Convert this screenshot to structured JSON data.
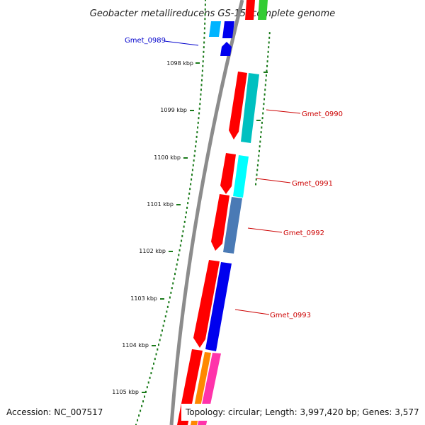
{
  "title": "Geobacter metallireducens GS-15, complete genome",
  "accession_label": "Accession: NC_007517",
  "topology_label": "Topology: circular; Length: 3,997,420 bp; Genes: 3,577",
  "ticks": [
    {
      "label": "1098 kbp"
    },
    {
      "label": "1099 kbp"
    },
    {
      "label": "1100 kbp"
    },
    {
      "label": "1101 kbp"
    },
    {
      "label": "1102 kbp"
    },
    {
      "label": "1103 kbp"
    },
    {
      "label": "1104 kbp"
    },
    {
      "label": "1105 kbp"
    }
  ],
  "gene_labels": [
    {
      "name": "Gmet_0989",
      "color": "#0000cc"
    },
    {
      "name": "Gmet_0990",
      "color": "#cc0000"
    },
    {
      "name": "Gmet_0991",
      "color": "#cc0000"
    },
    {
      "name": "Gmet_0992",
      "color": "#cc0000"
    },
    {
      "name": "Gmet_0993",
      "color": "#cc0000"
    }
  ],
  "colors": {
    "backbone": "#8c8c8c",
    "tick": "#1a7a1a",
    "gene_red": "#ff0000",
    "gene_blue": "#0000ee",
    "gene_cyan": "#00ccdd",
    "gene_teal": "#00c0c0",
    "gene_aqua": "#00ffff",
    "gene_steel": "#4a7ab5",
    "gene_sky": "#00b4ff",
    "gene_green": "#33cc33",
    "gene_orange": "#ff8800",
    "gene_pink": "#ff33aa",
    "label_red": "#cc0000",
    "label_blue": "#0000cc"
  }
}
